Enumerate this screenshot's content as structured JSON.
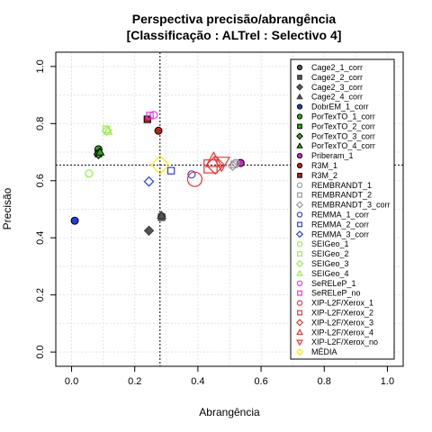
{
  "chart_data": {
    "type": "scatter",
    "title": "Perspectiva precisão/abrangência",
    "subtitle": "[Classificação : ALTrel : Selectivo 4]",
    "xlabel": "Abrangência",
    "ylabel": "Precisão",
    "xlim": [
      -0.05,
      1.05
    ],
    "ylim": [
      -0.05,
      1.05
    ],
    "xticks": [
      "0.0",
      "0.2",
      "0.4",
      "0.6",
      "0.8",
      "1.0"
    ],
    "yticks": [
      "0.0",
      "0.2",
      "0.4",
      "0.6",
      "0.8",
      "1.0"
    ],
    "grid": true,
    "reference_lines": {
      "x": 0.28,
      "y": 0.655
    },
    "legend_position": "right",
    "series": [
      {
        "name": "Cage2_1_corr",
        "color": "#555555",
        "shape": "circle",
        "fill": true,
        "x": 0.285,
        "y": 0.475,
        "size": 1
      },
      {
        "name": "Cage2_2_corr",
        "color": "#555555",
        "shape": "square",
        "fill": true,
        "x": 0.285,
        "y": 0.472,
        "size": 1
      },
      {
        "name": "Cage2_3_corr",
        "color": "#555555",
        "shape": "diamond",
        "fill": true,
        "x": 0.245,
        "y": 0.425,
        "size": 1
      },
      {
        "name": "Cage2_4_corr",
        "color": "#555555",
        "shape": "triangle",
        "fill": true,
        "x": 0.285,
        "y": 0.478,
        "size": 1
      },
      {
        "name": "DobrEM_1_corr",
        "color": "#1f3fd8",
        "shape": "circle",
        "fill": true,
        "x": 0.01,
        "y": 0.46,
        "size": 1
      },
      {
        "name": "PorTexTO_1_corr",
        "color": "#33aa00",
        "shape": "circle",
        "fill": true,
        "x": 0.085,
        "y": 0.71,
        "size": 1
      },
      {
        "name": "PorTexTO_2_corr",
        "color": "#33aa00",
        "shape": "square",
        "fill": true,
        "x": 0.085,
        "y": 0.695,
        "size": 1
      },
      {
        "name": "PorTexTO_3_corr",
        "color": "#33aa00",
        "shape": "diamond",
        "fill": true,
        "x": 0.085,
        "y": 0.693,
        "size": 1
      },
      {
        "name": "PorTexTO_4_corr",
        "color": "#33aa00",
        "shape": "triangle",
        "fill": true,
        "x": 0.09,
        "y": 0.7,
        "size": 1
      },
      {
        "name": "Priberam_1",
        "color": "#cc22cc",
        "shape": "circle",
        "fill": true,
        "x": 0.535,
        "y": 0.662,
        "size": 1
      },
      {
        "name": "R3M_1",
        "color": "#c02010",
        "shape": "circle",
        "fill": true,
        "x": 0.275,
        "y": 0.775,
        "size": 1
      },
      {
        "name": "R3M_2",
        "color": "#c02010",
        "shape": "square",
        "fill": true,
        "x": 0.24,
        "y": 0.815,
        "size": 1
      },
      {
        "name": "REMBRANDT_1",
        "color": "#999999",
        "shape": "circle",
        "fill": false,
        "x": 0.52,
        "y": 0.662,
        "size": 1
      },
      {
        "name": "REMBRANDT_2",
        "color": "#999999",
        "shape": "square",
        "fill": false,
        "x": 0.515,
        "y": 0.657,
        "size": 1
      },
      {
        "name": "REMBRANDT_3_corr",
        "color": "#999999",
        "shape": "diamond",
        "fill": false,
        "x": 0.51,
        "y": 0.652,
        "size": 1
      },
      {
        "name": "REMMA_1_corr",
        "color": "#2b3fe0",
        "shape": "circle",
        "fill": false,
        "x": 0.38,
        "y": 0.622,
        "size": 1
      },
      {
        "name": "REMMA_2_corr",
        "color": "#2b3fe0",
        "shape": "square",
        "fill": false,
        "x": 0.315,
        "y": 0.635,
        "size": 1
      },
      {
        "name": "REMMA_3_corr",
        "color": "#2b3fe0",
        "shape": "diamond",
        "fill": false,
        "x": 0.245,
        "y": 0.597,
        "size": 1
      },
      {
        "name": "SEIGeo_1",
        "color": "#99ee44",
        "shape": "circle",
        "fill": false,
        "x": 0.055,
        "y": 0.625,
        "size": 1
      },
      {
        "name": "SEIGeo_2",
        "color": "#99ee44",
        "shape": "square",
        "fill": false,
        "x": 0.11,
        "y": 0.78,
        "size": 1
      },
      {
        "name": "SEIGeo_3",
        "color": "#99ee44",
        "shape": "diamond",
        "fill": false,
        "x": 0.112,
        "y": 0.775,
        "size": 1
      },
      {
        "name": "SEIGeo_4",
        "color": "#99ee44",
        "shape": "triangle",
        "fill": false,
        "x": 0.115,
        "y": 0.773,
        "size": 1
      },
      {
        "name": "SeRELeP_1",
        "color": "#ee33ee",
        "shape": "circle",
        "fill": false,
        "x": 0.26,
        "y": 0.83,
        "size": 1
      },
      {
        "name": "SeRELeP_no",
        "color": "#ee33ee",
        "shape": "square",
        "fill": false,
        "x": 0.248,
        "y": 0.828,
        "size": 1
      },
      {
        "name": "XIP-L2F/Xerox_1",
        "color": "#ee3333",
        "shape": "circle",
        "fill": false,
        "x": 0.39,
        "y": 0.605,
        "size": 2
      },
      {
        "name": "XIP-L2F/Xerox_2",
        "color": "#ee3333",
        "shape": "square",
        "fill": false,
        "x": 0.44,
        "y": 0.65,
        "size": 2
      },
      {
        "name": "XIP-L2F/Xerox_3",
        "color": "#ee3333",
        "shape": "diamond",
        "fill": false,
        "x": 0.455,
        "y": 0.655,
        "size": 2
      },
      {
        "name": "XIP-L2F/Xerox_4",
        "color": "#ee3333",
        "shape": "triangle",
        "fill": false,
        "x": 0.45,
        "y": 0.67,
        "size": 2
      },
      {
        "name": "XIP-L2F/Xerox_no",
        "color": "#ee3333",
        "shape": "triangle-down",
        "fill": false,
        "x": 0.475,
        "y": 0.662,
        "size": 2
      },
      {
        "name": "MÉDIA",
        "color": "#ffee00",
        "shape": "diamond",
        "fill": false,
        "x": 0.28,
        "y": 0.655,
        "size": 2
      }
    ]
  }
}
